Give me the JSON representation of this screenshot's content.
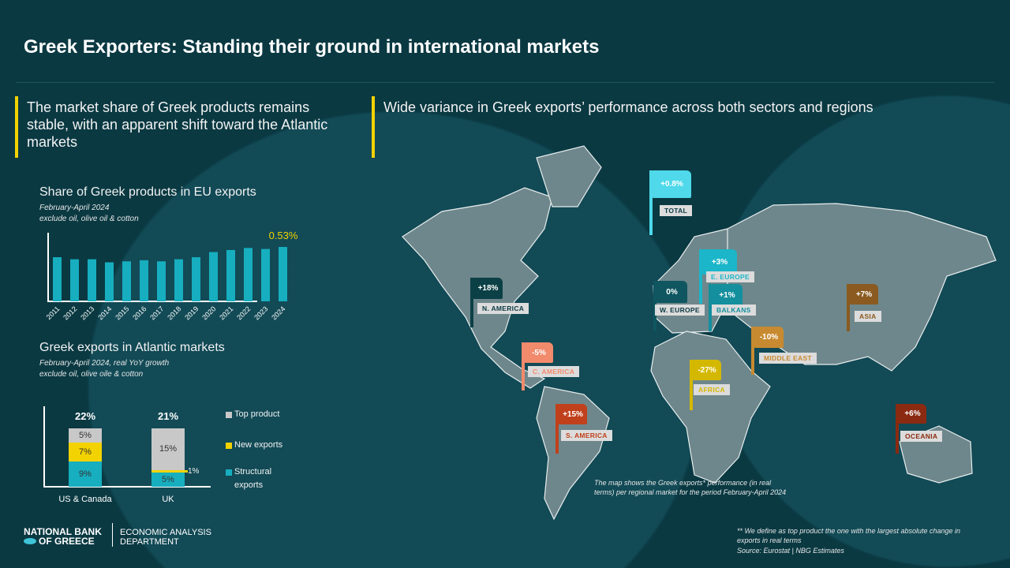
{
  "title": "Greek Exporters: Standing their ground in international markets",
  "left": {
    "headline": "The market share of Greek products remains stable, with an apparent shift toward the Atlantic markets"
  },
  "right": {
    "headline": "Wide variance  in Greek exports’ performance across both sectors and regions"
  },
  "chart_data": [
    {
      "type": "bar",
      "title": "Share of Greek products in EU exports",
      "subtitle": [
        "February-April 2024",
        "exclude oil, olive oil & cotton"
      ],
      "categories": [
        "2011",
        "2012",
        "2013",
        "2014",
        "2015",
        "2016",
        "2017",
        "2018",
        "2019",
        "2020",
        "2021",
        "2022",
        "2023",
        "2024"
      ],
      "values": [
        0.43,
        0.41,
        0.41,
        0.38,
        0.39,
        0.4,
        0.39,
        0.41,
        0.43,
        0.48,
        0.5,
        0.52,
        0.51,
        0.53
      ],
      "data_label": "0.53%",
      "color": "#17aebf",
      "ylim": [
        0,
        0.6
      ]
    },
    {
      "type": "bar",
      "stacked": true,
      "title": "Greek exports in Atlantic markets",
      "subtitle": [
        "February-April 2024,  real YoY growth",
        "exclude oil, olive oile & cotton"
      ],
      "categories": [
        "US & Canada",
        "UK"
      ],
      "totals": [
        "22%",
        "21%"
      ],
      "series": [
        {
          "name": "Structural exports",
          "values": [
            9,
            5
          ],
          "labels": [
            "9%",
            "5%"
          ],
          "color": "#17aebf"
        },
        {
          "name": "New exports",
          "values": [
            7,
            1
          ],
          "labels": [
            "7%",
            "1%"
          ],
          "color": "#f2d200"
        },
        {
          "name": "Top product",
          "values": [
            5,
            15
          ],
          "labels": [
            "5%",
            "15%"
          ],
          "color": "#c8c8c8"
        }
      ],
      "legend": "right"
    }
  ],
  "map": {
    "total": {
      "value": "+0.8%",
      "label": "TOTAL",
      "color": "#4fd9ea"
    },
    "regions": [
      {
        "name": "E. EUROPE",
        "value": "+3%",
        "color": "#1bb6c9"
      },
      {
        "name": "BALKANS",
        "value": "+1%",
        "color": "#138f9d"
      },
      {
        "name": "W. EUROPE",
        "value": "0%",
        "color": "#0f5660"
      },
      {
        "name": "N. AMERICA",
        "value": "+18%",
        "color": "#0b4046"
      },
      {
        "name": "C. AMERICA",
        "value": "-5%",
        "color": "#f28a6c"
      },
      {
        "name": "S. AMERICA",
        "value": "+15%",
        "color": "#c0401c"
      },
      {
        "name": "AFRICA",
        "value": "-27%",
        "color": "#d4b800"
      },
      {
        "name": "MIDDLE EAST",
        "value": "-10%",
        "color": "#c88a30"
      },
      {
        "name": "ASIA",
        "value": "+7%",
        "color": "#8a5a20"
      },
      {
        "name": "OCEANIA",
        "value": "+6%",
        "color": "#8a2a10"
      }
    ],
    "note": "The map shows the Greek exports* performance (in real terms) per regional market for the period February-April 2024"
  },
  "footer": {
    "note1": "** We define as top product the one with the largest absolute change in exports in real terms",
    "source": "Source: Eurostat | NBG Estimates",
    "logo_line1": "NATIONAL BANK",
    "logo_line2": "OF GREECE",
    "dept_line1": "ECONOMIC ANALYSIS",
    "dept_line2": "DEPARTMENT"
  }
}
